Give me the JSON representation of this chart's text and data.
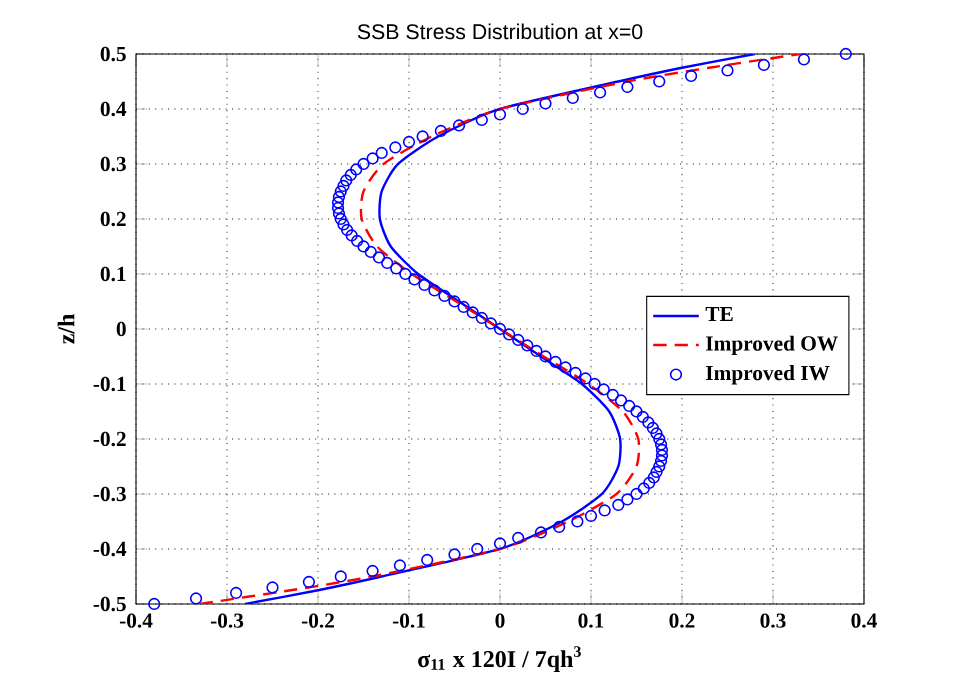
{
  "chart_data": {
    "type": "line",
    "title": "SSB Stress Distribution at x=0",
    "xlabel": "σ$_{11}$ x 120I / 7qh$^{3}$",
    "ylabel": "z/h",
    "xlim": [
      -0.4,
      0.4
    ],
    "ylim": [
      -0.5,
      0.5
    ],
    "xticks": [
      -0.4,
      -0.3,
      -0.2,
      -0.1,
      0,
      0.1,
      0.2,
      0.3,
      0.4
    ],
    "yticks": [
      -0.5,
      -0.4,
      -0.3,
      -0.2,
      -0.1,
      0,
      0.1,
      0.2,
      0.3,
      0.4,
      0.5
    ],
    "grid": true,
    "legend": "right",
    "series": [
      {
        "name": "TE",
        "color": "#0000ff",
        "line_style": "solid",
        "marker": "none",
        "x": [
          -0.28,
          -0.2,
          -0.13,
          0,
          0.068,
          0.112,
          0.13,
          0.132,
          0.12,
          0.09,
          0.045,
          0,
          -0.045,
          -0.09,
          -0.12,
          -0.132,
          -0.13,
          -0.112,
          -0.068,
          0,
          0.13,
          0.2,
          0.28
        ],
        "values": [
          -0.5,
          -0.475,
          -0.45,
          -0.4,
          -0.35,
          -0.3,
          -0.25,
          -0.2,
          -0.15,
          -0.1,
          -0.05,
          0,
          0.05,
          0.1,
          0.15,
          0.2,
          0.25,
          0.3,
          0.35,
          0.4,
          0.45,
          0.475,
          0.5
        ]
      },
      {
        "name": "Improved OW",
        "color": "#ff0000",
        "line_style": "dashed",
        "marker": "none",
        "x": [
          -0.33,
          -0.23,
          -0.14,
          0,
          0.075,
          0.128,
          0.15,
          0.152,
          0.135,
          0.097,
          0.048,
          0,
          -0.048,
          -0.097,
          -0.135,
          -0.152,
          -0.15,
          -0.128,
          -0.075,
          0,
          0.14,
          0.23,
          0.33
        ],
        "values": [
          -0.5,
          -0.475,
          -0.45,
          -0.4,
          -0.35,
          -0.3,
          -0.25,
          -0.2,
          -0.15,
          -0.1,
          -0.05,
          0,
          0.05,
          0.1,
          0.15,
          0.2,
          0.25,
          0.3,
          0.35,
          0.4,
          0.45,
          0.475,
          0.5
        ]
      },
      {
        "name": "Improved IW",
        "type": "scatter",
        "color": "#0000ff",
        "marker": "circle",
        "x": [
          -0.38,
          -0.334,
          -0.29,
          -0.25,
          -0.21,
          -0.175,
          -0.14,
          -0.11,
          -0.08,
          -0.05,
          -0.025,
          0,
          0.02,
          0.045,
          0.065,
          0.085,
          0.1,
          0.115,
          0.13,
          0.14,
          0.15,
          0.158,
          0.164,
          0.169,
          0.172,
          0.175,
          0.177,
          0.178,
          0.178,
          0.177,
          0.175,
          0.172,
          0.168,
          0.163,
          0.157,
          0.15,
          0.142,
          0.133,
          0.124,
          0.114,
          0.104,
          0.094,
          0.083,
          0.072,
          0.061,
          0.05,
          0.04,
          0.03,
          0.02,
          0.01,
          0,
          -0.01,
          -0.02,
          -0.03,
          -0.04,
          -0.05,
          -0.061,
          -0.072,
          -0.083,
          -0.094,
          -0.104,
          -0.114,
          -0.124,
          -0.133,
          -0.142,
          -0.15,
          -0.157,
          -0.163,
          -0.168,
          -0.172,
          -0.175,
          -0.177,
          -0.178,
          -0.178,
          -0.177,
          -0.175,
          -0.172,
          -0.169,
          -0.164,
          -0.158,
          -0.15,
          -0.14,
          -0.13,
          -0.115,
          -0.1,
          -0.085,
          -0.065,
          -0.045,
          -0.02,
          0,
          0.025,
          0.05,
          0.08,
          0.11,
          0.14,
          0.175,
          0.21,
          0.25,
          0.29,
          0.334,
          0.38
        ],
        "values": [
          -0.5,
          -0.49,
          -0.48,
          -0.47,
          -0.46,
          -0.45,
          -0.44,
          -0.43,
          -0.42,
          -0.41,
          -0.4,
          -0.39,
          -0.38,
          -0.37,
          -0.36,
          -0.35,
          -0.34,
          -0.33,
          -0.32,
          -0.31,
          -0.3,
          -0.29,
          -0.28,
          -0.27,
          -0.26,
          -0.25,
          -0.24,
          -0.23,
          -0.22,
          -0.21,
          -0.2,
          -0.19,
          -0.18,
          -0.17,
          -0.16,
          -0.15,
          -0.14,
          -0.13,
          -0.12,
          -0.11,
          -0.1,
          -0.09,
          -0.08,
          -0.07,
          -0.06,
          -0.05,
          -0.04,
          -0.03,
          -0.02,
          -0.01,
          0,
          0.01,
          0.02,
          0.03,
          0.04,
          0.05,
          0.06,
          0.07,
          0.08,
          0.09,
          0.1,
          0.11,
          0.12,
          0.13,
          0.14,
          0.15,
          0.16,
          0.17,
          0.18,
          0.19,
          0.2,
          0.21,
          0.22,
          0.23,
          0.24,
          0.25,
          0.26,
          0.27,
          0.28,
          0.29,
          0.3,
          0.31,
          0.32,
          0.33,
          0.34,
          0.35,
          0.36,
          0.37,
          0.38,
          0.39,
          0.4,
          0.41,
          0.42,
          0.43,
          0.44,
          0.45,
          0.46,
          0.47,
          0.48,
          0.49,
          0.5
        ]
      }
    ]
  }
}
